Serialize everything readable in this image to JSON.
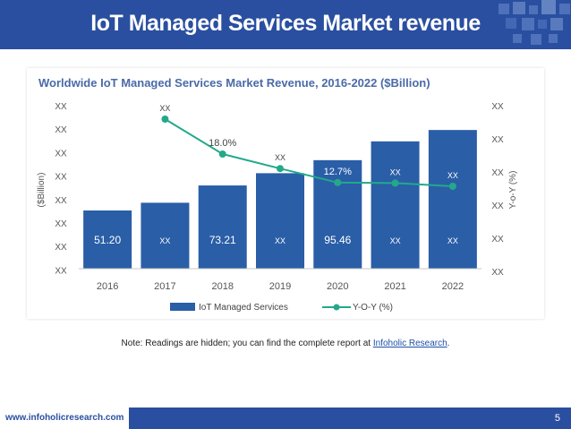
{
  "slide": {
    "title": "IoT Managed Services Market revenue",
    "note_prefix": "Note: Readings are hidden; you can find the complete report at ",
    "note_link": "Infoholic Research",
    "note_suffix": ".",
    "footer_url": "www.infoholicresearch.com",
    "page_number": "5",
    "accent_color": "#2a4fa0"
  },
  "chart_data": {
    "type": "bar",
    "title": "Worldwide IoT Managed Services Market Revenue, 2016-2022 ($Billion)",
    "categories": [
      "2016",
      "2017",
      "2018",
      "2019",
      "2020",
      "2021",
      "2022"
    ],
    "ylabel": "($Billion)",
    "y2label": "Y-o-Y (%)",
    "left_axis_ticks": [
      "XX",
      "XX",
      "XX",
      "XX",
      "XX",
      "XX",
      "XX",
      "XX"
    ],
    "right_axis_ticks": [
      "XX",
      "XX",
      "XX",
      "XX",
      "XX",
      "XX"
    ],
    "legend_position": "bottom",
    "grid": false,
    "series": [
      {
        "name": "IoT Managed Services",
        "kind": "bar",
        "color": "#2a5ea7",
        "values": [
          51.2,
          58,
          73.21,
          84,
          95.46,
          112,
          122
        ],
        "labels": [
          "51.20",
          "XX",
          "73.21",
          "XX",
          "95.46",
          "XX",
          "XX"
        ]
      },
      {
        "name": "Y-O-Y (%)",
        "kind": "line",
        "color": "#23a98a",
        "values": [
          null,
          24.5,
          18.0,
          15.3,
          12.7,
          12.6,
          12.0
        ],
        "labels": [
          null,
          "XX",
          "18.0%",
          "XX",
          "12.7%",
          "XX",
          "XX"
        ]
      }
    ]
  }
}
